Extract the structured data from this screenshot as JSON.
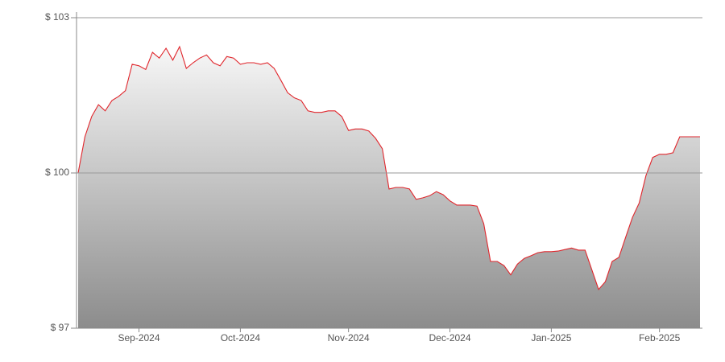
{
  "chart_data": {
    "type": "area",
    "categories": [
      null,
      null,
      null,
      null,
      null,
      null,
      null,
      null,
      null,
      "Sep-2024",
      null,
      null,
      null,
      null,
      null,
      null,
      null,
      null,
      null,
      null,
      null,
      null,
      null,
      null,
      "Oct-2024",
      null,
      null,
      null,
      null,
      null,
      null,
      null,
      null,
      null,
      null,
      null,
      null,
      null,
      null,
      null,
      "Nov-2024",
      null,
      null,
      null,
      null,
      null,
      null,
      null,
      null,
      null,
      null,
      null,
      null,
      null,
      null,
      "Dec-2024",
      null,
      null,
      null,
      null,
      null,
      null,
      null,
      null,
      null,
      null,
      null,
      null,
      null,
      null,
      "Jan-2025",
      null,
      null,
      null,
      null,
      null,
      null,
      null,
      null,
      null,
      null,
      null,
      null,
      null,
      null,
      null,
      "Feb-2025",
      null,
      null,
      null,
      null,
      null,
      null
    ],
    "values": [
      100.0,
      100.7,
      101.09,
      101.32,
      101.2,
      101.4,
      101.48,
      101.59,
      102.1,
      102.07,
      102.0,
      102.33,
      102.22,
      102.41,
      102.18,
      102.44,
      102.02,
      102.13,
      102.22,
      102.28,
      102.13,
      102.07,
      102.25,
      102.22,
      102.1,
      102.13,
      102.13,
      102.1,
      102.13,
      102.02,
      101.79,
      101.55,
      101.45,
      101.4,
      101.2,
      101.17,
      101.17,
      101.2,
      101.2,
      101.09,
      100.82,
      100.85,
      100.85,
      100.81,
      100.67,
      100.47,
      99.69,
      99.72,
      99.72,
      99.69,
      99.49,
      99.52,
      99.56,
      99.64,
      99.58,
      99.46,
      99.38,
      99.38,
      99.38,
      99.36,
      99.02,
      98.29,
      98.29,
      98.21,
      98.03,
      98.24,
      98.35,
      98.4,
      98.46,
      98.48,
      98.48,
      98.49,
      98.52,
      98.55,
      98.51,
      98.51,
      98.13,
      97.75,
      97.9,
      98.29,
      98.37,
      98.76,
      99.14,
      99.42,
      99.95,
      100.3,
      100.36,
      100.36,
      100.39,
      100.7,
      100.7,
      100.7,
      100.7
    ],
    "color": "#e0262c",
    "ylim": [
      97,
      103
    ],
    "yticks": [
      {
        "value": 97,
        "label": "$ 97"
      },
      {
        "value": 100,
        "label": "$ 100"
      },
      {
        "value": 103,
        "label": "$ 103"
      }
    ],
    "grid": true
  }
}
